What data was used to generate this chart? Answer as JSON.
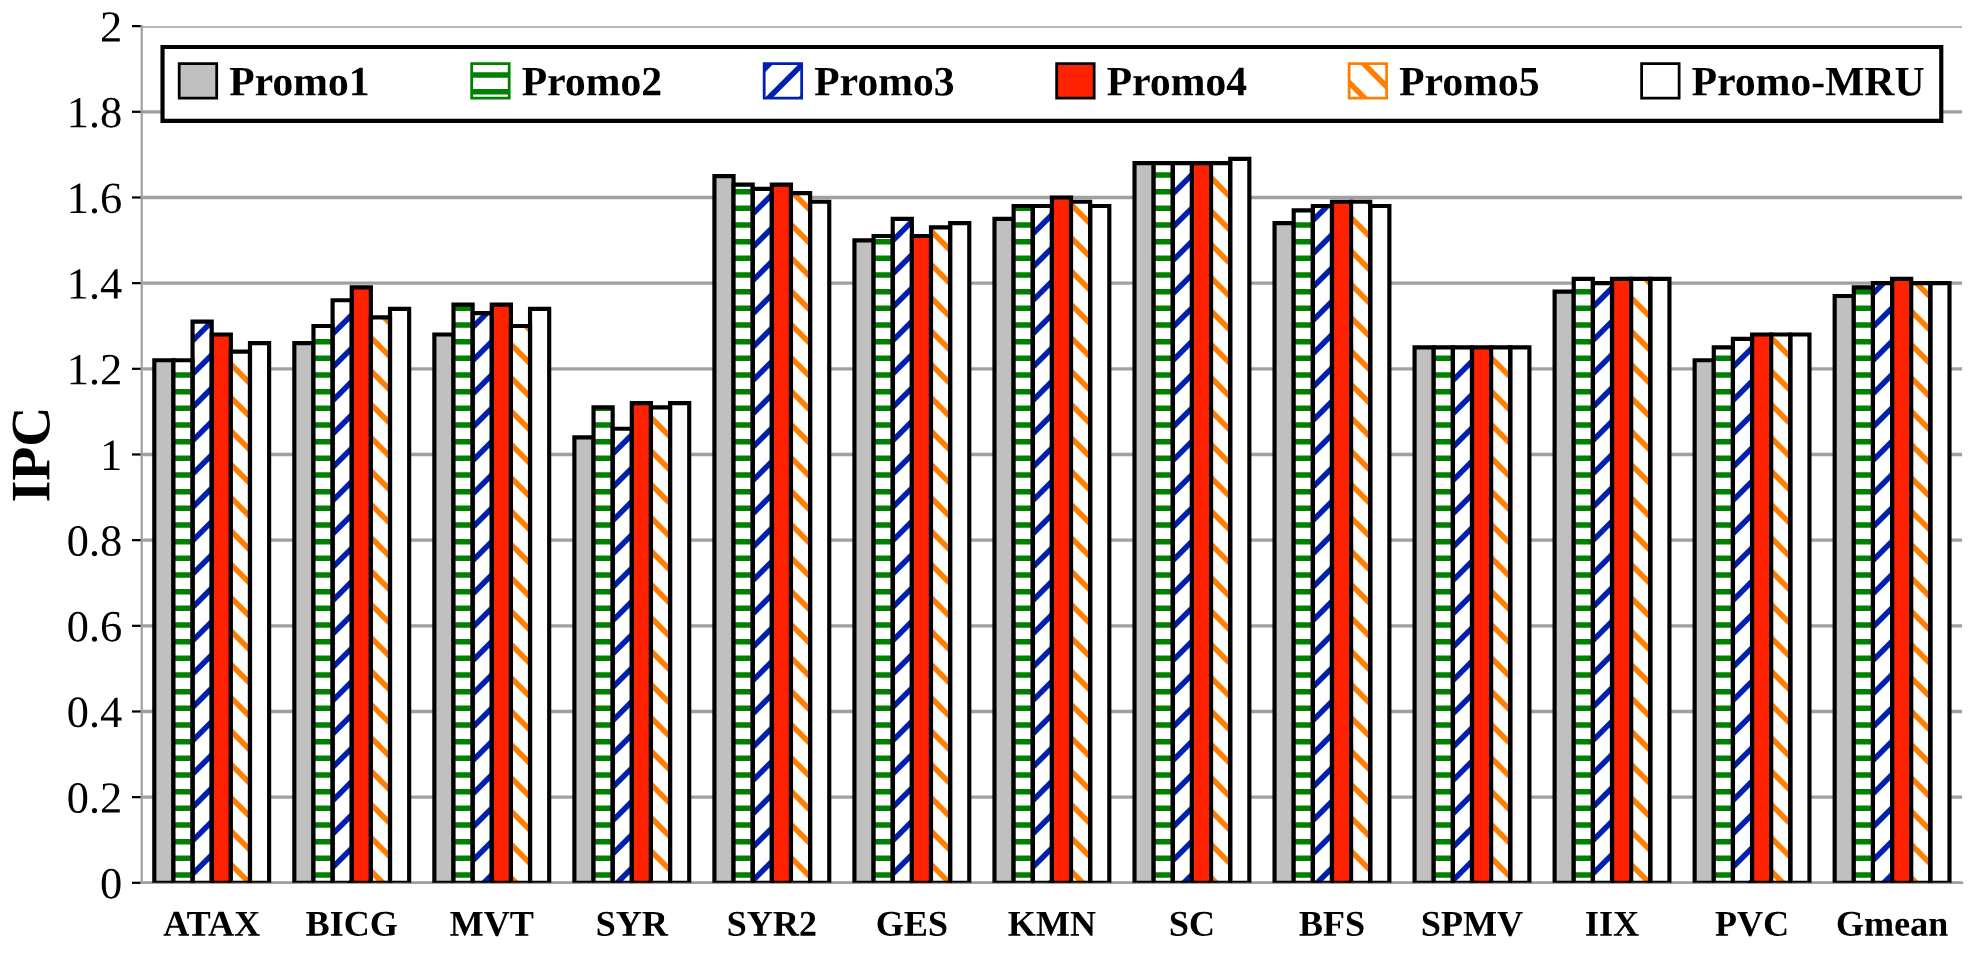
{
  "chart_data": {
    "type": "bar",
    "ylabel": "IPC",
    "categories": [
      "ATAX",
      "BICG",
      "MVT",
      "SYR",
      "SYR2",
      "GES",
      "KMN",
      "SC",
      "BFS",
      "SPMV",
      "IIX",
      "PVC",
      "Gmean"
    ],
    "series": [
      {
        "name": "Promo1",
        "color": "#c0c0c0",
        "values": [
          1.22,
          1.26,
          1.28,
          1.04,
          1.65,
          1.5,
          1.55,
          1.68,
          1.54,
          1.25,
          1.38,
          1.22,
          1.37
        ]
      },
      {
        "name": "Promo2",
        "color": "#008000",
        "values": [
          1.22,
          1.3,
          1.35,
          1.11,
          1.63,
          1.51,
          1.58,
          1.68,
          1.57,
          1.25,
          1.41,
          1.25,
          1.39
        ]
      },
      {
        "name": "Promo3",
        "color": "#0020b0",
        "values": [
          1.31,
          1.36,
          1.33,
          1.06,
          1.62,
          1.55,
          1.58,
          1.68,
          1.58,
          1.25,
          1.4,
          1.27,
          1.4
        ]
      },
      {
        "name": "Promo4",
        "color": "#ff2200",
        "values": [
          1.28,
          1.39,
          1.35,
          1.12,
          1.63,
          1.51,
          1.6,
          1.68,
          1.59,
          1.25,
          1.41,
          1.28,
          1.41
        ]
      },
      {
        "name": "Promo5",
        "color": "#ff8000",
        "values": [
          1.24,
          1.32,
          1.3,
          1.11,
          1.61,
          1.53,
          1.59,
          1.68,
          1.59,
          1.25,
          1.41,
          1.28,
          1.4
        ]
      },
      {
        "name": "Promo-MRU",
        "color": "#ffffff",
        "values": [
          1.26,
          1.34,
          1.34,
          1.12,
          1.59,
          1.54,
          1.58,
          1.69,
          1.58,
          1.25,
          1.41,
          1.28,
          1.4
        ]
      }
    ],
    "ylim": [
      0,
      2
    ],
    "yticks": [
      0,
      0.2,
      0.4,
      0.6,
      0.8,
      1,
      1.2,
      1.4,
      1.6,
      1.8,
      2
    ],
    "grid": "y",
    "legend": "top"
  }
}
